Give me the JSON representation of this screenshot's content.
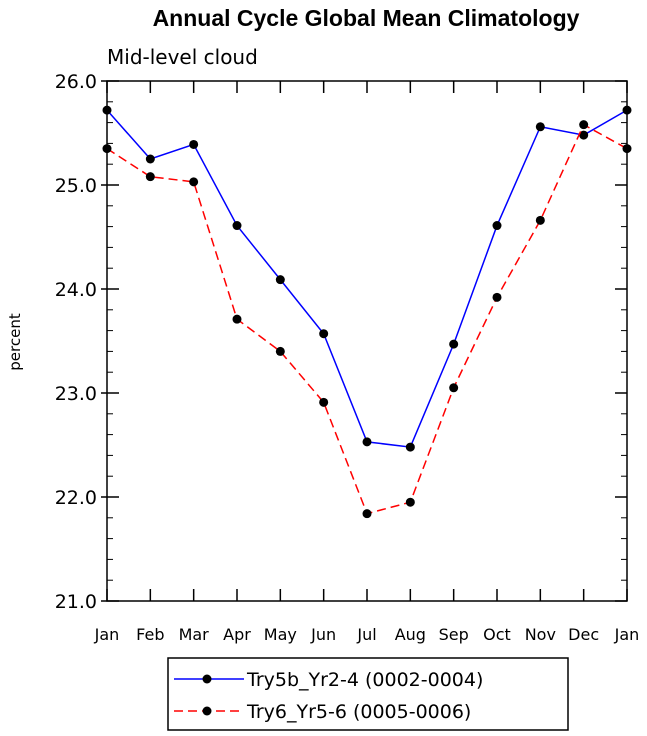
{
  "chart_data": {
    "type": "line",
    "title": "Annual Cycle Global Mean Climatology",
    "subtitle": "Mid-level cloud",
    "xlabel": "",
    "ylabel": "percent",
    "ylim": [
      21.0,
      26.0
    ],
    "yticks": [
      "21.0",
      "22.0",
      "23.0",
      "24.0",
      "25.0",
      "26.0"
    ],
    "categories": [
      "Jan",
      "Feb",
      "Mar",
      "Apr",
      "May",
      "Jun",
      "Jul",
      "Aug",
      "Sep",
      "Oct",
      "Nov",
      "Dec",
      "Jan"
    ],
    "series": [
      {
        "name": "Try5b_Yr2-4 (0002-0004)",
        "color": "#0000ff",
        "dash": "solid",
        "values": [
          25.72,
          25.25,
          25.39,
          24.61,
          24.09,
          23.57,
          22.53,
          22.48,
          23.47,
          24.61,
          25.56,
          25.48,
          25.72
        ]
      },
      {
        "name": "Try6_Yr5-6 (0005-0006)",
        "color": "#ff0000",
        "dash": "dashed",
        "values": [
          25.35,
          25.08,
          25.03,
          23.71,
          23.4,
          22.91,
          21.84,
          21.95,
          23.05,
          23.92,
          24.66,
          25.58,
          25.35
        ]
      }
    ],
    "grid": false,
    "legend_position": "bottom"
  }
}
